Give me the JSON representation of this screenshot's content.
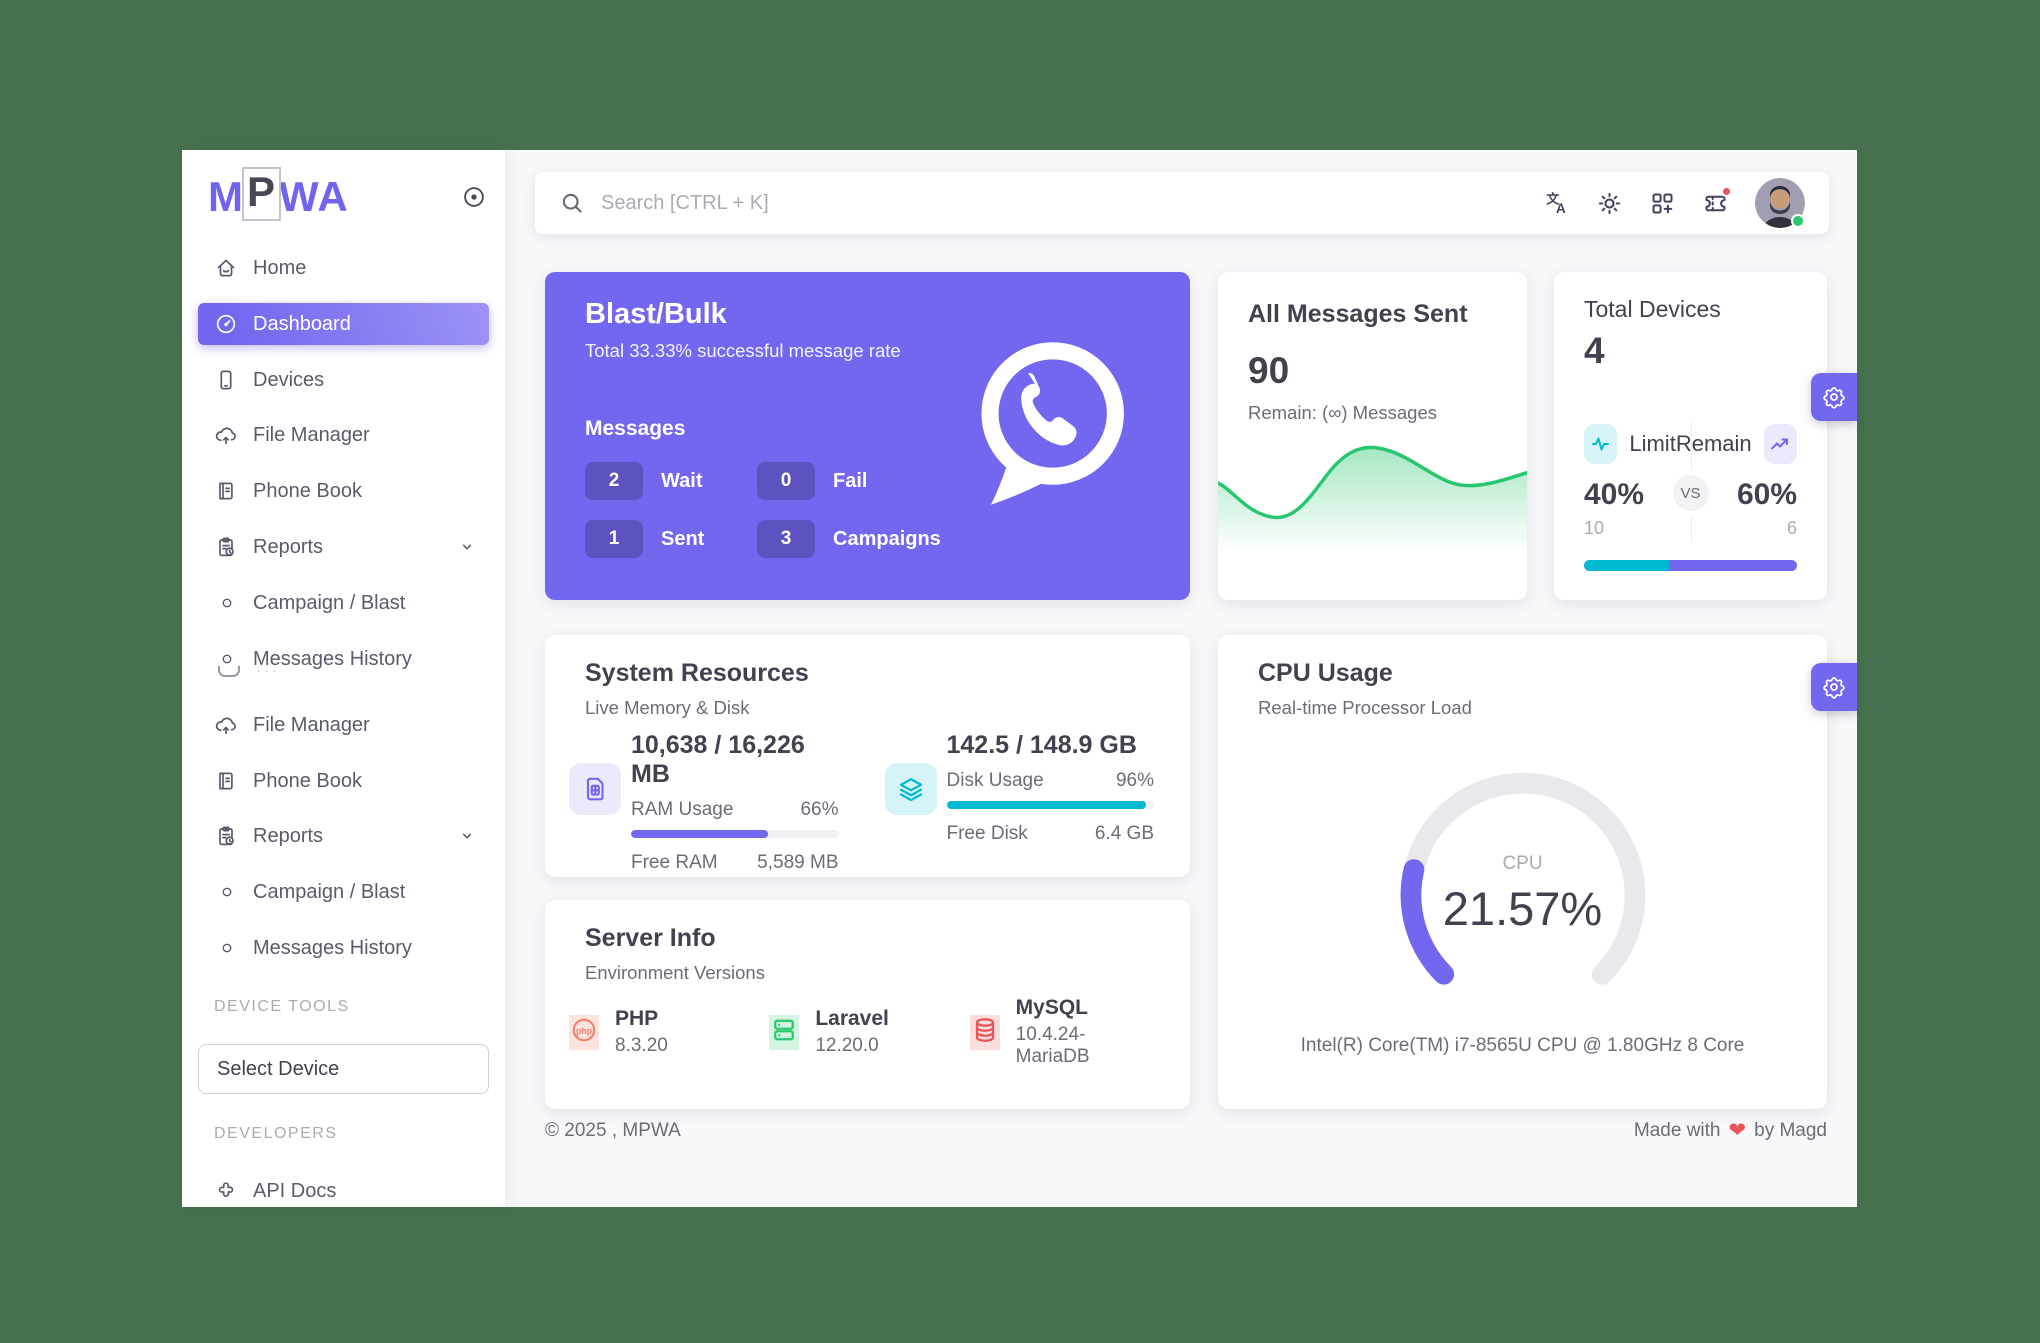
{
  "colors": {
    "primary": "#7367F0",
    "success": "#28C76F",
    "teal": "#00BAD1",
    "danger": "#EA5455",
    "page_background": "#47714E",
    "content_background": "#F8F7FA"
  },
  "icons": {
    "heart": "❤",
    "logo_toggle": "record-circle",
    "search": "magnifier",
    "language": "translate",
    "theme": "sun",
    "shortcuts": "grid-plus",
    "notifications": "ticket",
    "settings": "gear"
  },
  "logo": {
    "pre": "M",
    "mid": "P",
    "post": "WA"
  },
  "sidebar": {
    "items": [
      {
        "label": "Home"
      },
      {
        "label": "Dashboard"
      },
      {
        "label": "Devices"
      },
      {
        "label": "File Manager"
      },
      {
        "label": "Phone Book"
      },
      {
        "label": "Reports"
      },
      {
        "label": "Campaign / Blast"
      },
      {
        "label": "Messages History"
      },
      {
        "label": "File Manager"
      },
      {
        "label": "Phone Book"
      },
      {
        "label": "Reports"
      },
      {
        "label": "Campaign / Blast"
      },
      {
        "label": "Messages History"
      }
    ],
    "device_tools_label": "DEVICE TOOLS",
    "select_device": "Select Device",
    "developers_label": "DEVELOPERS",
    "api_docs": "API Docs"
  },
  "topbar": {
    "search_placeholder": "Search [CTRL + K]"
  },
  "blast": {
    "title": "Blast/Bulk",
    "subtitle": "Total 33.33% successful message rate",
    "messages_label": "Messages",
    "stats": [
      {
        "value": "2",
        "label": "Wait"
      },
      {
        "value": "0",
        "label": "Fail"
      },
      {
        "value": "1",
        "label": "Sent"
      },
      {
        "value": "3",
        "label": "Campaigns"
      }
    ]
  },
  "all_messages": {
    "title": "All Messages Sent",
    "value": "90",
    "remain": "Remain: (∞) Messages"
  },
  "total_devices": {
    "title": "Total Devices",
    "value": "4",
    "limit_label": "Limit",
    "remain_label": "Remain",
    "vs": "VS",
    "limit_percent": "40%",
    "remain_percent": "60%",
    "limit_count": "10",
    "remain_count": "6",
    "limit_value": 40,
    "remain_value": 60
  },
  "system_resources": {
    "title": "System Resources",
    "subtitle": "Live Memory & Disk",
    "ram": {
      "value": "10,638 / 16,226 MB",
      "usage_label": "RAM Usage",
      "usage_percent": "66%",
      "percent": 66,
      "free_label": "Free RAM",
      "free_value": "5,589 MB"
    },
    "disk": {
      "value": "142.5 / 148.9 GB",
      "usage_label": "Disk Usage",
      "usage_percent": "96%",
      "percent": 96,
      "free_label": "Free Disk",
      "free_value": "6.4 GB"
    }
  },
  "server_info": {
    "title": "Server Info",
    "subtitle": "Environment Versions",
    "items": [
      {
        "name": "PHP",
        "version": "8.3.20"
      },
      {
        "name": "Laravel",
        "version": "12.20.0"
      },
      {
        "name": "MySQL",
        "version": "10.4.24-MariaDB"
      }
    ]
  },
  "cpu": {
    "title": "CPU Usage",
    "subtitle": "Real-time Processor Load",
    "gauge_label": "CPU",
    "gauge_value": "21.57%",
    "percent": 21.57,
    "cpu_info": "Intel(R) Core(TM) i7-8565U CPU @ 1.80GHz 8 Core"
  },
  "footer": {
    "copyright": "© 2025 , MPWA",
    "made_with": "Made with",
    "made_by": "by Magd"
  }
}
